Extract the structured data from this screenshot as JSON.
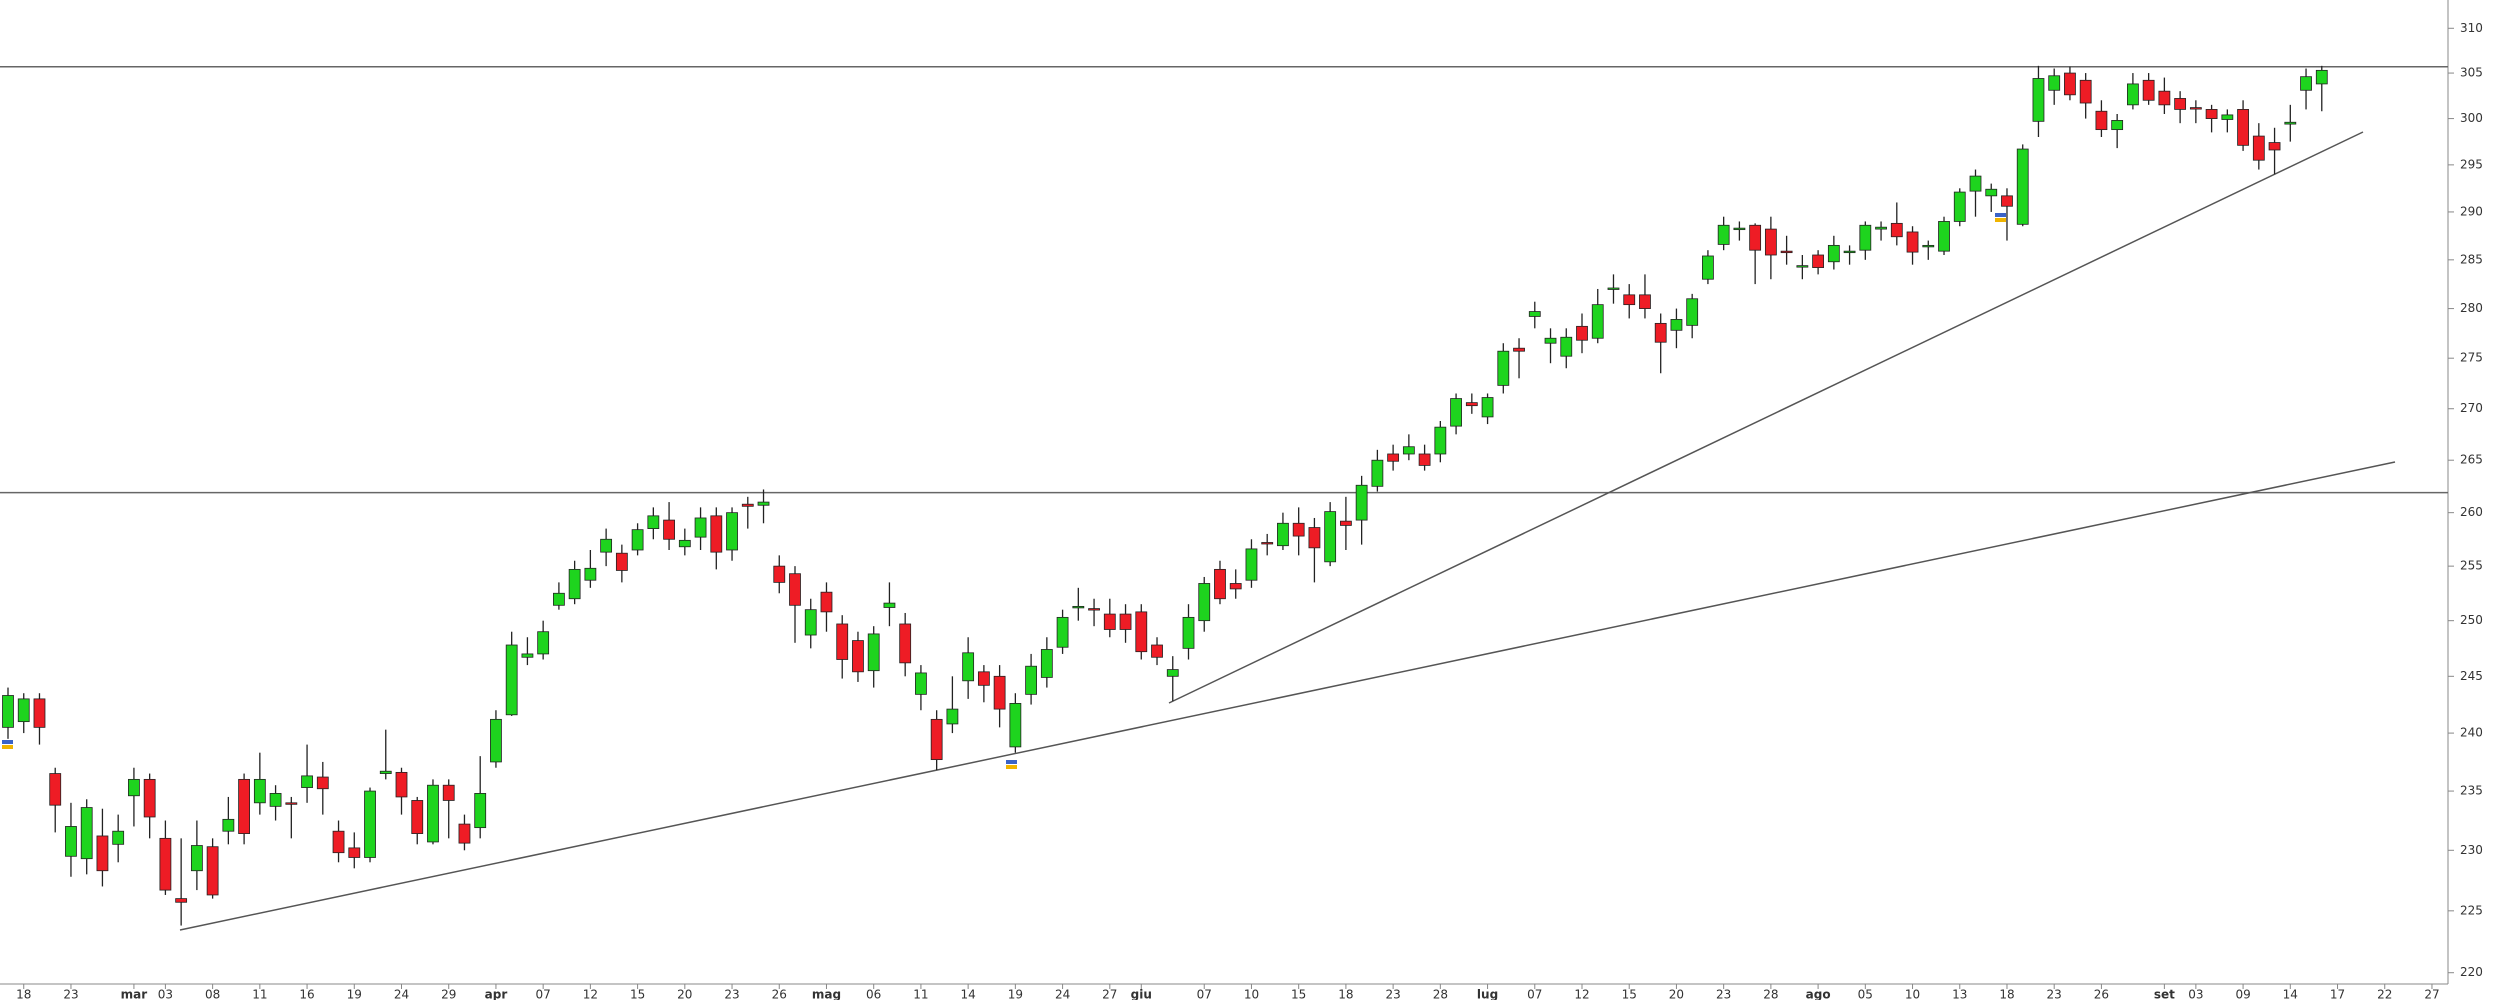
{
  "chart_data": {
    "type": "candlestick",
    "log_scale": true,
    "up_color": "#1ed41e",
    "down_color": "#ee1c25",
    "level_color": "#666666",
    "categories": [
      null,
      "18",
      null,
      null,
      "23",
      null,
      null,
      null,
      "mar",
      null,
      "03",
      null,
      null,
      "08",
      null,
      null,
      "11",
      null,
      null,
      "16",
      null,
      null,
      "19",
      null,
      null,
      "24",
      null,
      null,
      "29",
      null,
      null,
      "apr",
      null,
      null,
      "07",
      null,
      null,
      "12",
      null,
      null,
      "15",
      null,
      null,
      "20",
      null,
      null,
      "23",
      null,
      null,
      "26",
      null,
      null,
      "mag",
      null,
      null,
      "06",
      null,
      null,
      "11",
      null,
      null,
      "14",
      null,
      null,
      "19",
      null,
      null,
      "24",
      null,
      null,
      "27",
      null,
      "giu",
      null,
      null,
      null,
      "07",
      null,
      null,
      "10",
      null,
      null,
      "15",
      null,
      null,
      "18",
      null,
      null,
      "23",
      null,
      null,
      "28",
      null,
      null,
      "lug",
      null,
      null,
      "07",
      null,
      null,
      "12",
      null,
      null,
      "15",
      null,
      null,
      "20",
      null,
      null,
      "23",
      null,
      null,
      "28",
      null,
      null,
      "ago",
      null,
      null,
      "05",
      null,
      null,
      "10",
      null,
      null,
      "13",
      null,
      null,
      "18",
      null,
      null,
      "23",
      null,
      null,
      "26",
      null,
      null,
      null,
      "set",
      null,
      "03",
      null,
      null,
      "09",
      null,
      null,
      "14",
      null,
      null,
      "17",
      null,
      null,
      "22",
      null,
      null,
      "27"
    ],
    "open": [
      240.5,
      241,
      243,
      236.5,
      229.5,
      229.3,
      231.2,
      230.5,
      234.6,
      236,
      231,
      226,
      228.3,
      230.3,
      231.6,
      236,
      234,
      233.7,
      234,
      235.3,
      236.2,
      231.6,
      230.2,
      229.4,
      236.5,
      236.6,
      234.2,
      230.7,
      235.5,
      232.2,
      231.9,
      237.5,
      241.6,
      246.7,
      247,
      251.4,
      252,
      253.7,
      256.3,
      256.2,
      256.5,
      258.5,
      259.3,
      256.8,
      257.7,
      259.7,
      256.5,
      260.8,
      260.7,
      255,
      254.3,
      248.7,
      252.6,
      249.7,
      248.2,
      245.5,
      251.2,
      249.7,
      243.4,
      241.2,
      240.8,
      244.6,
      245.4,
      245,
      238.8,
      243.4,
      244.9,
      247.6,
      251.2,
      251.1,
      250.6,
      250.6,
      250.8,
      247.8,
      245,
      247.5,
      250,
      254.7,
      253.4,
      253.7,
      257.2,
      256.9,
      259,
      258.6,
      255.4,
      259.2,
      259.3,
      262.5,
      265.6,
      265.6,
      265.6,
      265.6,
      268.3,
      270.6,
      269.2,
      272.3,
      276,
      279.2,
      276.5,
      275.2,
      278.2,
      277,
      282,
      281.4,
      281.4,
      278.5,
      277.8,
      278.3,
      283,
      286.6,
      288.2,
      288.6,
      288.2,
      285.9,
      284.3,
      285.5,
      284.8,
      285.8,
      286,
      288.2,
      288.8,
      287.9,
      286.4,
      285.9,
      289,
      292.2,
      291.7,
      291.7,
      288.7,
      299.7,
      303.1,
      305,
      304.2,
      300.8,
      298.8,
      301.5,
      304.2,
      303,
      302.2,
      301.2,
      301,
      299.9,
      301,
      298.1,
      297.4,
      299.4,
      303.1,
      303.8,
      null,
      null,
      null,
      null,
      null,
      null,
      null
    ],
    "high": [
      244,
      243.5,
      243.5,
      237,
      234,
      234.3,
      233.5,
      233,
      237,
      236.5,
      232.5,
      231,
      232.5,
      231,
      234.5,
      236.5,
      238.3,
      235.5,
      234.5,
      239,
      237.5,
      232.5,
      231.5,
      235.3,
      240.3,
      237,
      234.5,
      236,
      236,
      233,
      238,
      242,
      249,
      248.5,
      250,
      253.5,
      255.5,
      256.5,
      258.5,
      257,
      259,
      260.5,
      261,
      258.5,
      260.5,
      260.5,
      260.5,
      261.5,
      262.2,
      256,
      255,
      252,
      253.5,
      250.5,
      249,
      249.5,
      253.5,
      250.7,
      246,
      242,
      245,
      248.5,
      246,
      246,
      243.5,
      247,
      248.5,
      251,
      253,
      252,
      252,
      251.5,
      251.5,
      248.5,
      246.8,
      251.5,
      254,
      255.5,
      254.7,
      257.5,
      258,
      260,
      260.5,
      259.5,
      261,
      261.5,
      263.5,
      266,
      266.5,
      267.5,
      266.5,
      268.8,
      271.5,
      271.5,
      271.5,
      276.5,
      277,
      280.7,
      278,
      278,
      279.5,
      282,
      283.5,
      282.5,
      283.5,
      279.5,
      280,
      281.5,
      286,
      289.5,
      289,
      288.8,
      289.5,
      287.5,
      285.5,
      286,
      287.5,
      286.5,
      289,
      289,
      291,
      288.5,
      287,
      289.5,
      292.5,
      294.5,
      293,
      292.5,
      297.2,
      305.8,
      305.5,
      305.7,
      305,
      302,
      300.5,
      305,
      305,
      304.5,
      303,
      302,
      301.5,
      301,
      302,
      299.5,
      299,
      301.5,
      305.5,
      305.8,
      null,
      null,
      null,
      null,
      null,
      null,
      null
    ],
    "low": [
      239.5,
      240,
      239,
      231.5,
      227.8,
      228,
      227,
      229,
      232,
      231,
      226.3,
      223.8,
      226.7,
      226,
      230.5,
      230.5,
      233,
      232.5,
      231,
      234,
      233,
      229,
      228.5,
      229,
      236,
      233,
      230.5,
      230.5,
      231,
      230,
      231,
      237,
      241.5,
      246,
      246.5,
      251,
      251.5,
      253,
      255,
      253.5,
      256,
      257.5,
      256.5,
      256,
      256.5,
      254.7,
      255.5,
      258.5,
      259,
      252.5,
      248,
      247.5,
      249,
      244.8,
      244.5,
      244,
      249.5,
      245,
      242,
      236.8,
      240,
      243,
      242.7,
      240.5,
      238.3,
      242.5,
      244,
      247,
      250,
      249.5,
      248.5,
      248,
      246.5,
      246,
      242.8,
      246.5,
      249,
      251.5,
      252,
      253,
      256,
      256.5,
      256,
      253.5,
      255,
      256.5,
      257,
      262,
      264,
      265,
      264,
      264.8,
      267.5,
      269.5,
      268.5,
      271.5,
      273,
      278,
      274.5,
      274,
      275.5,
      276.5,
      280.5,
      279,
      279,
      273.5,
      276,
      277,
      282.5,
      286,
      287,
      282.5,
      283,
      284.5,
      283,
      283.5,
      284,
      284.5,
      285,
      287,
      286.5,
      284.5,
      285,
      285.5,
      288.5,
      289.5,
      290,
      287,
      288.5,
      298,
      301.5,
      302,
      300,
      298,
      296.8,
      301,
      301.5,
      300.5,
      299.5,
      299.5,
      298.5,
      298.5,
      296.5,
      294.5,
      294,
      297.5,
      301,
      300.8,
      null,
      null,
      null,
      null,
      null,
      null,
      null
    ],
    "close": [
      243.3,
      243,
      240.5,
      233.8,
      232,
      233.6,
      228.3,
      231.6,
      236,
      232.8,
      226.7,
      225.7,
      230.4,
      226.3,
      232.6,
      231.4,
      236,
      234.8,
      233.9,
      236.3,
      235.2,
      229.8,
      229.4,
      235,
      236.7,
      234.5,
      231.4,
      235.5,
      234.2,
      230.6,
      234.8,
      241.2,
      247.8,
      247,
      249,
      252.5,
      254.7,
      254.8,
      257.5,
      254.6,
      258.4,
      259.7,
      257.5,
      257.4,
      259.5,
      256.3,
      260,
      260.6,
      261,
      253.5,
      251.4,
      251,
      250.8,
      246.5,
      245.4,
      248.8,
      251.6,
      246.2,
      245.3,
      237.7,
      242.1,
      247.1,
      244.2,
      242.1,
      242.6,
      245.9,
      247.4,
      250.3,
      251.3,
      251,
      249.2,
      249.2,
      247.2,
      246.7,
      245.6,
      250.3,
      253.4,
      252,
      252.9,
      256.6,
      257.1,
      259,
      257.8,
      256.7,
      260.1,
      258.8,
      262.6,
      265,
      264.9,
      266.3,
      264.5,
      268.2,
      271,
      270.3,
      271.1,
      275.7,
      275.7,
      279.7,
      277,
      277.1,
      276.8,
      280.4,
      282.1,
      280.4,
      280,
      276.6,
      278.9,
      281,
      285.4,
      288.6,
      288.3,
      286,
      285.5,
      285.8,
      284.4,
      284.2,
      286.5,
      285.9,
      288.6,
      288.4,
      287.4,
      285.8,
      286.5,
      289,
      292.1,
      293.8,
      292.4,
      290.6,
      296.7,
      304.4,
      304.7,
      302.6,
      301.7,
      298.8,
      299.8,
      303.8,
      302,
      301.5,
      301,
      301.1,
      300,
      300.4,
      297.1,
      295.5,
      296.6,
      299.6,
      304.6,
      305.3,
      null,
      null,
      null,
      null,
      null,
      null,
      null
    ],
    "levels": [
      305.7,
      261.9
    ],
    "ylim": [
      219.1,
      313.2
    ],
    "yticks": [
      220,
      225,
      230,
      235,
      240,
      245,
      250,
      255,
      260,
      265,
      270,
      275,
      280,
      285,
      290,
      295,
      300,
      305,
      310
    ]
  }
}
